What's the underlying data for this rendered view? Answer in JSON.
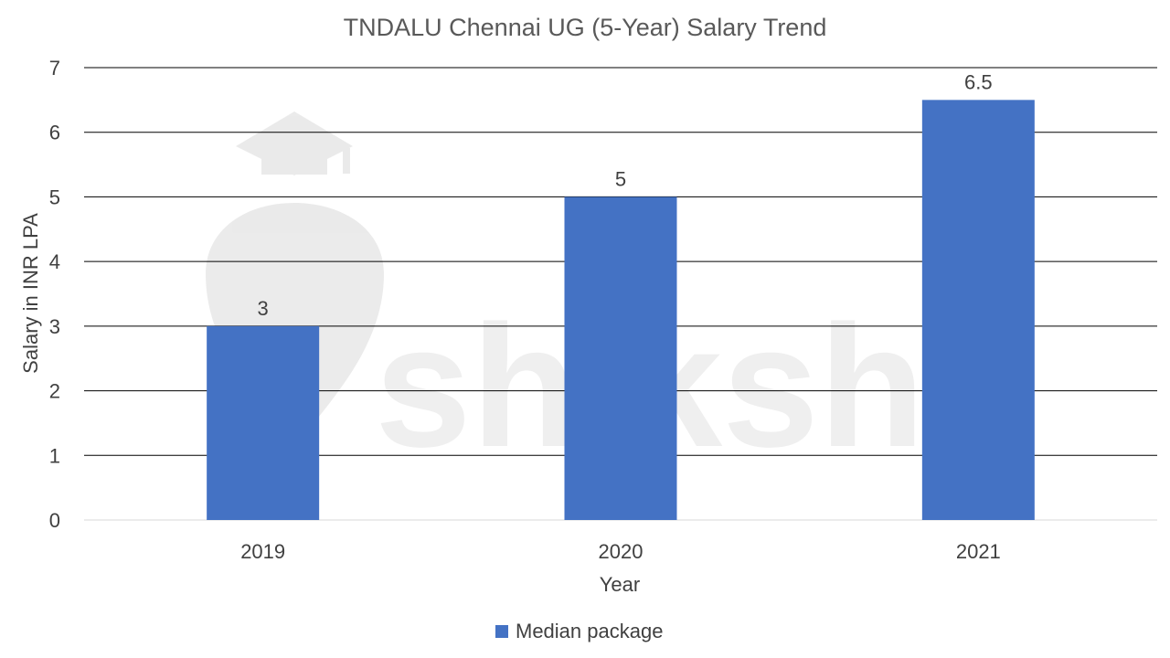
{
  "chart_data": {
    "type": "bar",
    "title": "TNDALU Chennai UG (5-Year) Salary Trend",
    "xlabel": "Year",
    "ylabel": "Salary in INR LPA",
    "categories": [
      "2019",
      "2020",
      "2021"
    ],
    "series": [
      {
        "name": "Median package",
        "values": [
          3,
          5,
          6.5
        ],
        "color": "#4472C4"
      }
    ],
    "ylim": [
      0,
      7
    ],
    "yticks": [
      0,
      1,
      2,
      3,
      4,
      5,
      6,
      7
    ],
    "grid": true,
    "legend": "bottom",
    "data_labels": true
  },
  "watermark": {
    "text": "shiksha",
    "icon": "graduation-cap-icon"
  }
}
